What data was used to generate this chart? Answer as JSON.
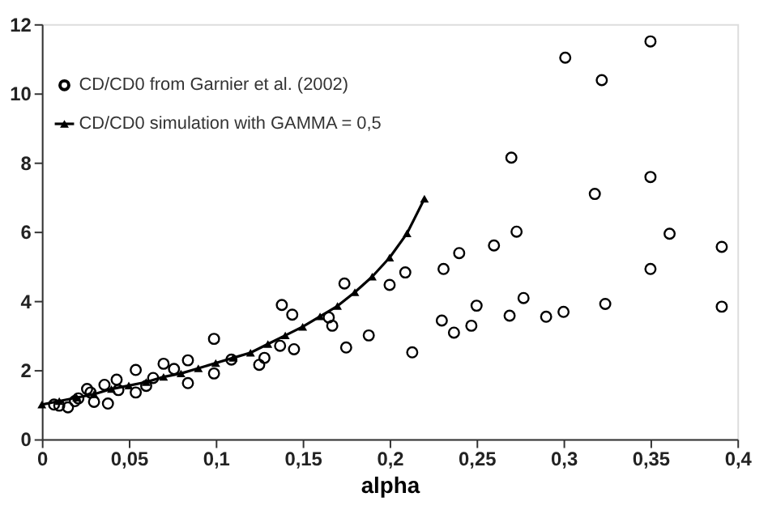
{
  "chart_data": {
    "type": "scatter",
    "xlabel": "alpha",
    "xlim": [
      0,
      0.4
    ],
    "xticks": [
      0,
      {
        "value": 0.05,
        "label": "0,05"
      },
      {
        "value": 0.1,
        "label": "0,1"
      },
      {
        "value": 0.15,
        "label": "0,15"
      },
      {
        "value": 0.2,
        "label": "0,2"
      },
      {
        "value": 0.25,
        "label": "0,25"
      },
      {
        "value": 0.3,
        "label": "0,3"
      },
      {
        "value": 0.35,
        "label": "0,35"
      },
      {
        "value": 0.4,
        "label": "0,4"
      }
    ],
    "ylim": [
      0,
      12
    ],
    "yticks": [
      0,
      2,
      4,
      6,
      8,
      10,
      12
    ],
    "grid": false,
    "legend": "top left",
    "series": [
      {
        "name": "CD/CD0   from Garnier et al. (2002)",
        "marker": "circle",
        "color": "#000000",
        "x": [
          0.007,
          0.01,
          0.015,
          0.019,
          0.021,
          0.026,
          0.028,
          0.03,
          0.036,
          0.038,
          0.043,
          0.044,
          0.054,
          0.054,
          0.06,
          0.064,
          0.07,
          0.076,
          0.084,
          0.084,
          0.099,
          0.099,
          0.109,
          0.125,
          0.128,
          0.137,
          0.138,
          0.144,
          0.145,
          0.165,
          0.167,
          0.174,
          0.175,
          0.188,
          0.2,
          0.209,
          0.213,
          0.23,
          0.231,
          0.237,
          0.24,
          0.247,
          0.25,
          0.26,
          0.269,
          0.27,
          0.273,
          0.277,
          0.29,
          0.3,
          0.301,
          0.318,
          0.322,
          0.324,
          0.35,
          0.35,
          0.35,
          0.361,
          0.391,
          0.391
        ],
        "values": [
          1.0,
          0.97,
          0.92,
          1.1,
          1.18,
          1.45,
          1.35,
          1.08,
          1.57,
          1.03,
          1.72,
          1.42,
          2.0,
          1.35,
          1.54,
          1.77,
          2.18,
          2.03,
          2.28,
          1.62,
          2.9,
          1.9,
          2.3,
          2.15,
          2.35,
          2.7,
          3.88,
          3.6,
          2.6,
          3.52,
          3.28,
          4.5,
          2.65,
          3.0,
          4.46,
          4.82,
          2.51,
          3.43,
          4.92,
          3.08,
          5.38,
          3.28,
          3.86,
          5.6,
          3.57,
          8.14,
          6.0,
          4.08,
          3.54,
          3.68,
          11.03,
          7.09,
          10.38,
          3.91,
          4.92,
          7.58,
          11.5,
          5.94,
          3.83,
          5.56
        ]
      },
      {
        "name": "CD/CD0    simulation with GAMMA = 0,5",
        "type": "line",
        "marker": "triangle",
        "line_style": "solid",
        "color": "#000000",
        "x": [
          0,
          0.01,
          0.02,
          0.03,
          0.04,
          0.05,
          0.06,
          0.07,
          0.08,
          0.09,
          0.1,
          0.11,
          0.12,
          0.13,
          0.14,
          0.15,
          0.16,
          0.17,
          0.18,
          0.19,
          0.2,
          0.21,
          0.22
        ],
        "values": [
          1.0,
          1.1,
          1.2,
          1.3,
          1.45,
          1.55,
          1.65,
          1.8,
          1.9,
          2.05,
          2.2,
          2.35,
          2.5,
          2.75,
          3.0,
          3.25,
          3.55,
          3.85,
          4.25,
          4.7,
          5.25,
          5.95,
          6.95
        ]
      }
    ]
  }
}
